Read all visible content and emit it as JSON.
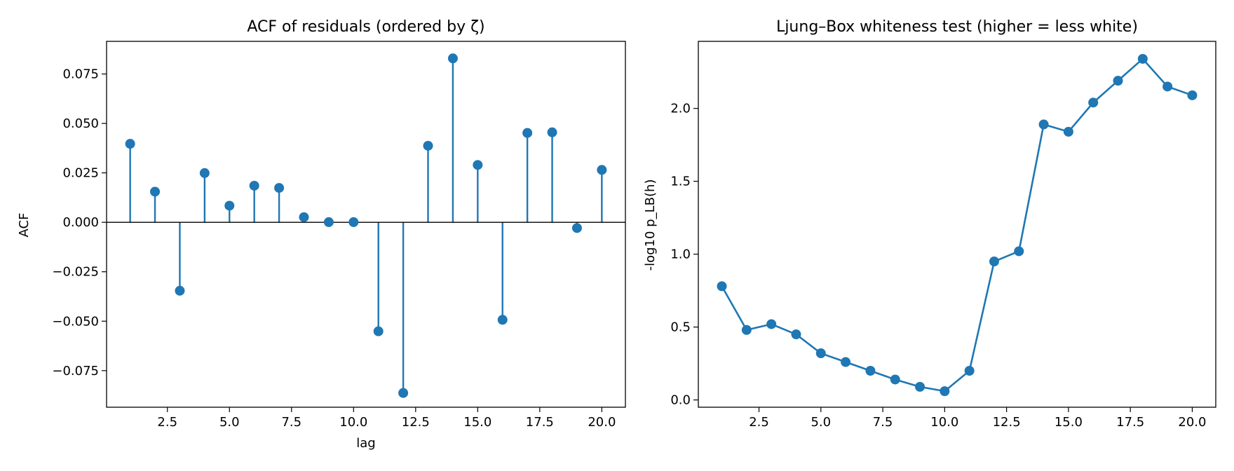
{
  "colors": {
    "series": "#1f77b4",
    "axis": "#000000",
    "background": "#ffffff"
  },
  "chart_data": [
    {
      "type": "stem",
      "title": "ACF of residuals (ordered by ζ)",
      "xlabel": "lag",
      "ylabel": "ACF",
      "xlim": [
        0.05,
        20.95
      ],
      "ylim": [
        -0.0935,
        0.0915
      ],
      "xticks": [
        2.5,
        5.0,
        7.5,
        10.0,
        12.5,
        15.0,
        17.5,
        20.0
      ],
      "xtick_labels": [
        "2.5",
        "5.0",
        "7.5",
        "10.0",
        "12.5",
        "15.0",
        "17.5",
        "20.0"
      ],
      "yticks": [
        -0.075,
        -0.05,
        -0.025,
        0.0,
        0.025,
        0.05,
        0.075
      ],
      "ytick_labels": [
        "−0.075",
        "−0.050",
        "−0.025",
        "0.000",
        "0.025",
        "0.050",
        "0.075"
      ],
      "baseline": 0.0,
      "grid": false,
      "x": [
        1,
        2,
        3,
        4,
        5,
        6,
        7,
        8,
        9,
        10,
        11,
        12,
        13,
        14,
        15,
        16,
        17,
        18,
        19,
        20
      ],
      "y": [
        0.0397,
        0.0155,
        -0.0346,
        0.0249,
        0.0084,
        0.0185,
        0.0174,
        0.0026,
        0.0001,
        0.0001,
        -0.0551,
        -0.0863,
        0.0387,
        0.0829,
        0.029,
        -0.0493,
        0.0452,
        0.0455,
        -0.0029,
        0.0265
      ]
    },
    {
      "type": "line",
      "title": "Ljung–Box whiteness test (higher = less white)",
      "xlabel": "",
      "ylabel": "-log10 p_LB(h)",
      "xlim": [
        0.05,
        20.95
      ],
      "ylim": [
        -0.05,
        2.46
      ],
      "xticks": [
        2.5,
        5.0,
        7.5,
        10.0,
        12.5,
        15.0,
        17.5,
        20.0
      ],
      "xtick_labels": [
        "2.5",
        "5.0",
        "7.5",
        "10.0",
        "12.5",
        "15.0",
        "17.5",
        "20.0"
      ],
      "yticks": [
        0.0,
        0.5,
        1.0,
        1.5,
        2.0
      ],
      "ytick_labels": [
        "0.0",
        "0.5",
        "1.0",
        "1.5",
        "2.0"
      ],
      "markers": true,
      "grid": false,
      "x": [
        1,
        2,
        3,
        4,
        5,
        6,
        7,
        8,
        9,
        10,
        11,
        12,
        13,
        14,
        15,
        16,
        17,
        18,
        19,
        20
      ],
      "y": [
        0.78,
        0.48,
        0.52,
        0.45,
        0.32,
        0.26,
        0.2,
        0.14,
        0.09,
        0.06,
        0.2,
        0.95,
        1.02,
        1.89,
        1.84,
        2.04,
        2.19,
        2.34,
        2.15,
        2.09
      ]
    }
  ]
}
